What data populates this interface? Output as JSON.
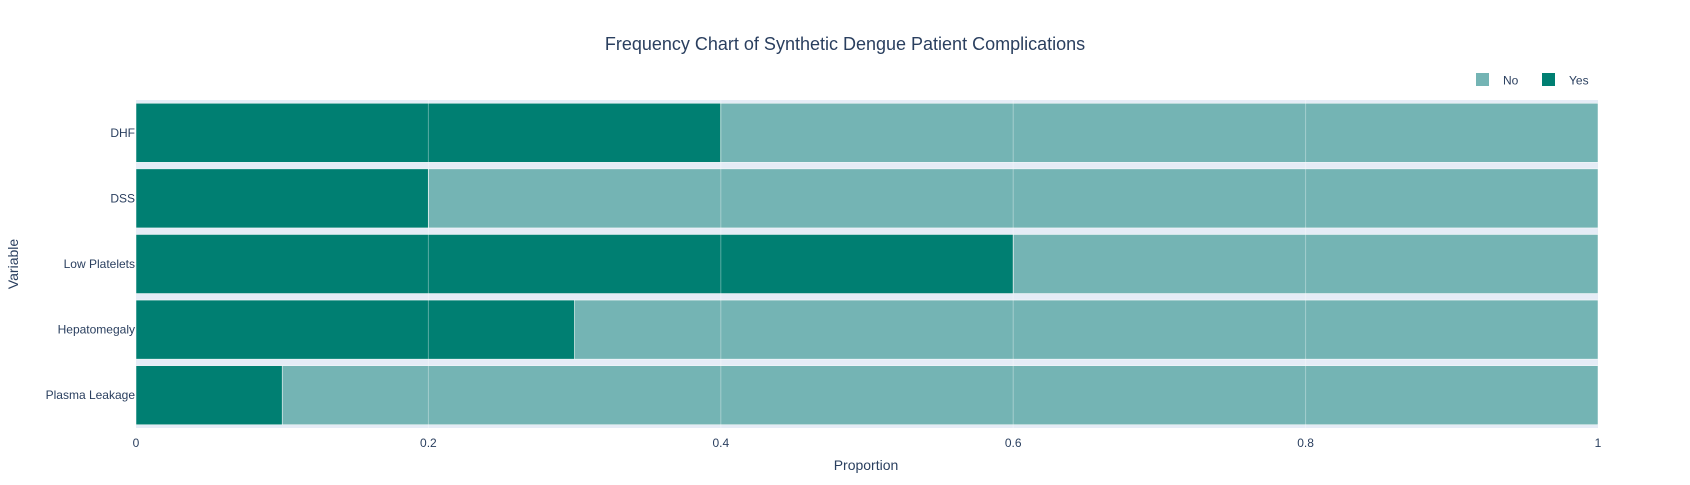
{
  "chart_data": {
    "type": "bar",
    "orientation": "horizontal",
    "barmode": "stack",
    "title": "Frequency Chart of Synthetic Dengue Patient Complications",
    "xlabel": "Proportion",
    "ylabel": "Variable",
    "xlim": [
      0,
      1
    ],
    "xticks": [
      "0",
      "0.2",
      "0.4",
      "0.6",
      "0.8",
      "1"
    ],
    "categories": [
      "DHF",
      "DSS",
      "Low Platelets",
      "Hepatomegaly",
      "Plasma Leakage"
    ],
    "series": [
      {
        "name": "Yes",
        "color": "#007F72",
        "values": [
          0.4,
          0.2,
          0.6,
          0.3,
          0.1
        ]
      },
      {
        "name": "No",
        "color": "#74B4B4",
        "values": [
          0.6,
          0.8,
          0.4,
          0.7,
          0.9
        ]
      }
    ],
    "legend": {
      "position": "top-right",
      "order": [
        "No",
        "Yes"
      ]
    },
    "plot_background": "#E5ECF6",
    "grid": true
  }
}
